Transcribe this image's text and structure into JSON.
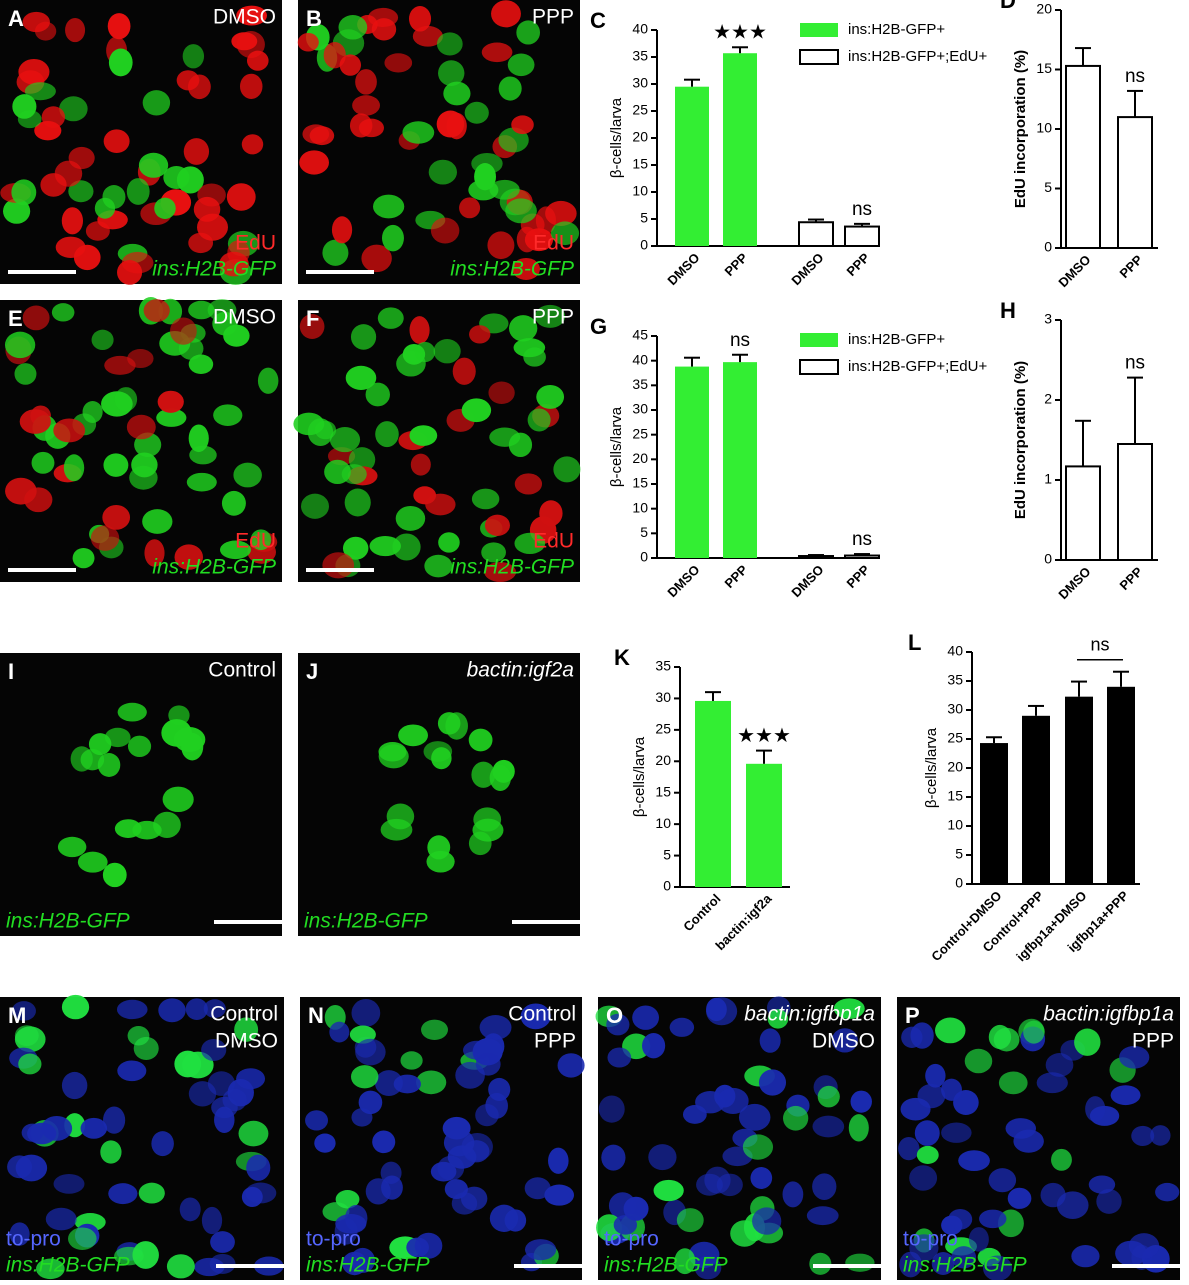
{
  "images": [
    {
      "letter": "A",
      "top": [
        {
          "text": "DMSO"
        }
      ],
      "bottom": [
        {
          "text": "EdU",
          "color": "#ff2a2a"
        },
        {
          "text": "ins:H2B-GFP",
          "color": "#22dd22",
          "italic": true
        }
      ],
      "cell_colors": [
        "#e81010",
        "#e81010",
        "#20d020"
      ]
    },
    {
      "letter": "B",
      "top": [
        {
          "text": "PPP"
        }
      ],
      "bottom": [
        {
          "text": "EdU",
          "color": "#ff2a2a"
        },
        {
          "text": "ins:H2B-GFP",
          "color": "#22dd22",
          "italic": true
        }
      ],
      "cell_colors": [
        "#e81010",
        "#e81010",
        "#20d020"
      ]
    },
    {
      "letter": "E",
      "top": [
        {
          "text": "DMSO"
        }
      ],
      "bottom": [
        {
          "text": "EdU",
          "color": "#ff2a2a"
        },
        {
          "text": "ins:H2B-GFP",
          "color": "#22dd22",
          "italic": true
        }
      ],
      "cell_colors": [
        "#d01010",
        "#20d020",
        "#20d020"
      ]
    },
    {
      "letter": "F",
      "top": [
        {
          "text": "PPP"
        }
      ],
      "bottom": [
        {
          "text": "EdU",
          "color": "#ff2a2a"
        },
        {
          "text": "ins:H2B-GFP",
          "color": "#22dd22",
          "italic": true
        }
      ],
      "cell_colors": [
        "#d01010",
        "#20d020",
        "#20d020"
      ]
    },
    {
      "letter": "I",
      "top": [
        {
          "text": "Control"
        }
      ],
      "bottom": [
        {
          "text": "ins:H2B-GFP",
          "color": "#22dd22",
          "italic": true
        }
      ],
      "cell_colors": [
        "#20d020"
      ]
    },
    {
      "letter": "J",
      "top": [
        {
          "text": "bactin:igf2a",
          "italic": true
        }
      ],
      "bottom": [
        {
          "text": "ins:H2B-GFP",
          "color": "#22dd22",
          "italic": true
        }
      ],
      "cell_colors": [
        "#20d020"
      ]
    },
    {
      "letter": "M",
      "top": [
        {
          "text": "Control"
        },
        {
          "text": "DMSO"
        }
      ],
      "bottom": [
        {
          "text": "to-pro",
          "color": "#5566ff"
        },
        {
          "text": "ins:H2B-GFP",
          "color": "#22dd22",
          "italic": true
        }
      ],
      "cell_colors": [
        "#1a2ab0",
        "#1a2ab0",
        "#1a2ab0",
        "#20e040"
      ]
    },
    {
      "letter": "N",
      "top": [
        {
          "text": "Control"
        },
        {
          "text": "PPP"
        }
      ],
      "bottom": [
        {
          "text": "to-pro",
          "color": "#5566ff"
        },
        {
          "text": "ins:H2B-GFP",
          "color": "#22dd22",
          "italic": true
        }
      ],
      "cell_colors": [
        "#1a2ab0",
        "#1a2ab0",
        "#1a2ab0",
        "#20e040"
      ]
    },
    {
      "letter": "O",
      "top": [
        {
          "text": "bactin:igfbp1a",
          "italic": true
        },
        {
          "text": "DMSO"
        }
      ],
      "bottom": [
        {
          "text": "to-pro",
          "color": "#5566ff"
        },
        {
          "text": "ins:H2B-GFP",
          "color": "#22dd22",
          "italic": true
        }
      ],
      "cell_colors": [
        "#1a2ab0",
        "#1a2ab0",
        "#20e040"
      ]
    },
    {
      "letter": "P",
      "top": [
        {
          "text": "bactin:igfbp1a",
          "italic": true
        },
        {
          "text": "PPP"
        }
      ],
      "bottom": [
        {
          "text": "to-pro",
          "color": "#5566ff"
        },
        {
          "text": "ins:H2B-GFP",
          "color": "#22dd22",
          "italic": true
        }
      ],
      "cell_colors": [
        "#1a2ab0",
        "#1a2ab0",
        "#20e040"
      ]
    }
  ],
  "chart_data": [
    {
      "type": "bar",
      "letter": "C",
      "y_label": "β-cells/larva",
      "ylim": [
        0,
        40
      ],
      "yticks": [
        0,
        5,
        10,
        15,
        20,
        25,
        30,
        35,
        40
      ],
      "categories": [
        "DMSO",
        "PPP",
        "DMSO",
        "PPP"
      ],
      "series": [
        {
          "name": "ins:H2B-GFP+",
          "color": "#33ee33",
          "values": [
            29.5,
            35.7,
            null,
            null
          ],
          "errors": [
            1.3,
            1.1,
            null,
            null
          ]
        },
        {
          "name": "ins:H2B-GFP+;EdU+",
          "color": "#ffffff",
          "values": [
            null,
            null,
            4.4,
            3.6
          ],
          "errors": [
            null,
            null,
            0.5,
            0.5
          ]
        }
      ],
      "annotations": [
        null,
        "★★★",
        null,
        "ns"
      ]
    },
    {
      "type": "bar",
      "letter": "D",
      "y_label": "EdU incorporation (%)",
      "ylim": [
        0,
        20
      ],
      "yticks": [
        0,
        5,
        10,
        15,
        20
      ],
      "categories": [
        "DMSO",
        "PPP"
      ],
      "series": [
        {
          "color": "#ffffff",
          "values": [
            15.3,
            11.0
          ],
          "errors": [
            1.5,
            2.2
          ]
        }
      ],
      "annotations": [
        null,
        "ns"
      ]
    },
    {
      "type": "bar",
      "letter": "G",
      "y_label": "β-cells/larva",
      "ylim": [
        0,
        45
      ],
      "yticks": [
        0,
        5,
        10,
        15,
        20,
        25,
        30,
        35,
        40,
        45
      ],
      "categories": [
        "DMSO",
        "PPP",
        "DMSO",
        "PPP"
      ],
      "series": [
        {
          "name": "ins:H2B-GFP+",
          "color": "#33ee33",
          "values": [
            38.8,
            39.7,
            null,
            null
          ],
          "errors": [
            1.8,
            1.5,
            null,
            null
          ]
        },
        {
          "name": "ins:H2B-GFP+;EdU+",
          "color": "#ffffff",
          "values": [
            null,
            null,
            0.4,
            0.5
          ],
          "errors": [
            null,
            null,
            0.2,
            0.3
          ]
        }
      ],
      "annotations": [
        null,
        "ns",
        null,
        "ns"
      ]
    },
    {
      "type": "bar",
      "letter": "H",
      "y_label": "EdU incorporation (%)",
      "ylim": [
        0,
        3
      ],
      "yticks": [
        0,
        1,
        2,
        3
      ],
      "categories": [
        "DMSO",
        "PPP"
      ],
      "series": [
        {
          "color": "#ffffff",
          "values": [
            1.17,
            1.45
          ],
          "errors": [
            0.57,
            0.83
          ]
        }
      ],
      "annotations": [
        null,
        "ns"
      ]
    },
    {
      "type": "bar",
      "letter": "K",
      "y_label": "β-cells/larva",
      "ylim": [
        0,
        35
      ],
      "yticks": [
        0,
        5,
        10,
        15,
        20,
        25,
        30,
        35
      ],
      "categories": [
        "Control",
        "bactin:igf2a"
      ],
      "series": [
        {
          "color": "#33ee33",
          "values": [
            29.6,
            19.6
          ],
          "errors": [
            1.4,
            2.1
          ]
        }
      ],
      "annotations": [
        null,
        "★★★"
      ]
    },
    {
      "type": "bar",
      "letter": "L",
      "y_label": "β-cells/larva",
      "ylim": [
        0,
        40
      ],
      "yticks": [
        0,
        5,
        10,
        15,
        20,
        25,
        30,
        35,
        40
      ],
      "categories": [
        "Control+DMSO",
        "Control+PPP",
        "igfbp1a+DMSO",
        "igfbp1a+PPP"
      ],
      "series": [
        {
          "color": "#000000",
          "values": [
            24.3,
            29.0,
            32.3,
            34.0
          ],
          "errors": [
            1.0,
            1.7,
            2.6,
            2.6
          ]
        }
      ],
      "annotations": [
        null,
        null,
        null,
        "ns"
      ]
    }
  ]
}
